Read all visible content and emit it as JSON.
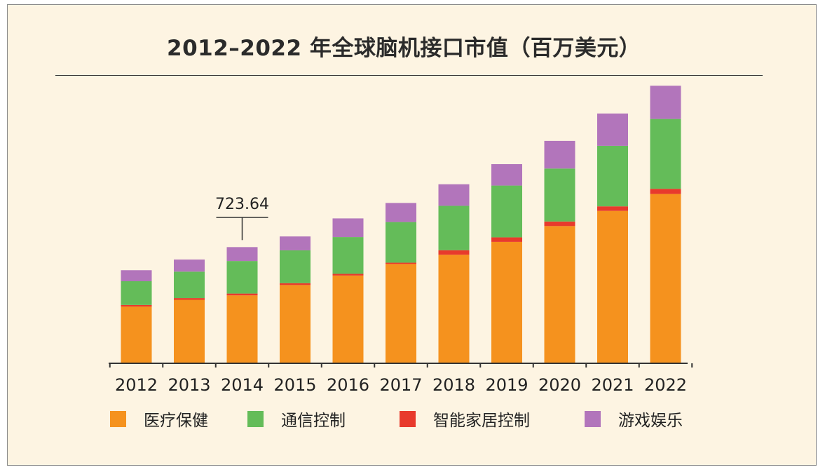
{
  "chart_data": {
    "type": "bar",
    "stacked": true,
    "title": "2012–2022 年全球脑机接口市值（百万美元）",
    "categories": [
      "2012",
      "2013",
      "2014",
      "2015",
      "2016",
      "2017",
      "2018",
      "2019",
      "2020",
      "2021",
      "2022"
    ],
    "series": [
      {
        "name": "医疗保健",
        "color": "#f5921e",
        "values": [
          437,
          489,
          523,
          603,
          676,
          765,
          836,
          935,
          1057,
          1174,
          1304
        ]
      },
      {
        "name": "智能家居控制",
        "color": "#e83a2c",
        "values": [
          12,
          13,
          14,
          14,
          13,
          10,
          35,
          35,
          35,
          35,
          40
        ]
      },
      {
        "name": "通信控制",
        "color": "#64bc59",
        "values": [
          183,
          204,
          251,
          253,
          283,
          313,
          342,
          399,
          408,
          466,
          538
        ]
      },
      {
        "name": "游戏娱乐",
        "color": "#b275bb",
        "values": [
          85,
          93,
          107,
          107,
          144,
          147,
          166,
          165,
          213,
          249,
          256
        ]
      }
    ],
    "annotation": {
      "category": "2014",
      "label": "723.64"
    },
    "ylim": [
      0,
      2150
    ],
    "grid": false,
    "legend_position": "bottom",
    "legend_order": [
      "医疗保健",
      "通信控制",
      "智能家居控制",
      "游戏娱乐"
    ]
  }
}
